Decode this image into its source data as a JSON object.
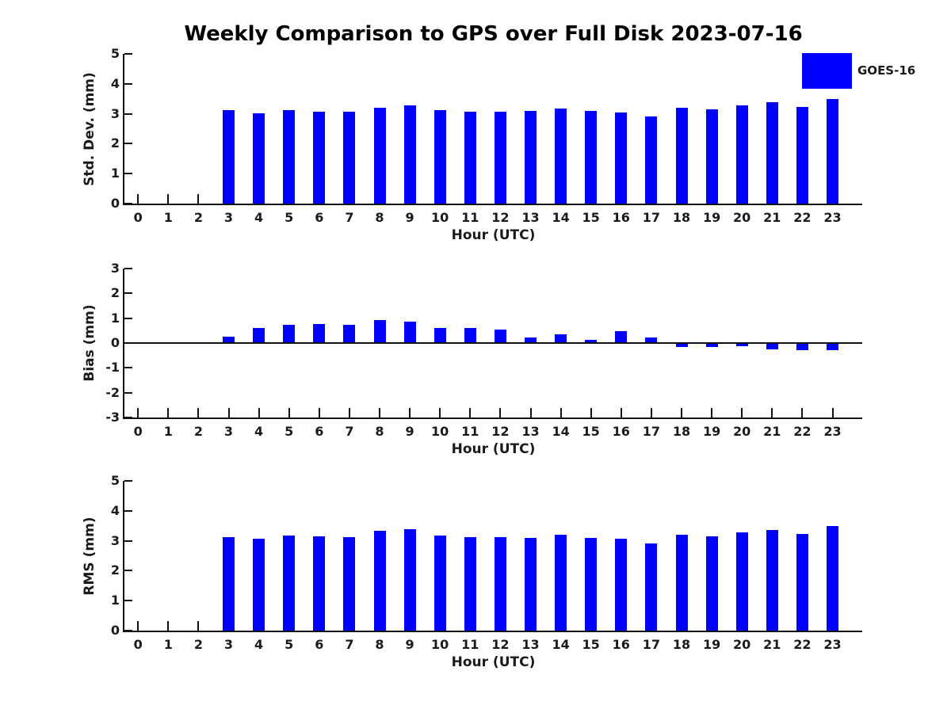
{
  "title": "Weekly Comparison to GPS over Full Disk 2023-07-16",
  "legend": {
    "label": "GOES-16",
    "color": "#0000ff",
    "position": "upper right"
  },
  "chart_data": [
    {
      "type": "bar",
      "panel": "std-dev",
      "ylabel": "Std. Dev. (mm)",
      "xlabel": "Hour (UTC)",
      "ylim": [
        0,
        5
      ],
      "yticks": [
        0,
        1,
        2,
        3,
        4,
        5
      ],
      "grid": false,
      "categories": [
        0,
        1,
        2,
        3,
        4,
        5,
        6,
        7,
        8,
        9,
        10,
        11,
        12,
        13,
        14,
        15,
        16,
        17,
        18,
        19,
        20,
        21,
        22,
        23
      ],
      "series": [
        {
          "name": "GOES-16",
          "color": "#0000ff",
          "values": [
            null,
            null,
            null,
            3.12,
            3.01,
            3.12,
            3.08,
            3.06,
            3.2,
            3.28,
            3.12,
            3.07,
            3.07,
            3.1,
            3.17,
            3.1,
            3.05,
            2.9,
            3.21,
            3.15,
            3.27,
            3.38,
            3.23,
            3.5
          ]
        }
      ]
    },
    {
      "type": "bar",
      "panel": "bias",
      "ylabel": "Bias (mm)",
      "xlabel": "Hour (UTC)",
      "ylim": [
        -3,
        3
      ],
      "yticks": [
        -3,
        -2,
        -1,
        0,
        1,
        2,
        3
      ],
      "zero_line": true,
      "grid": false,
      "categories": [
        0,
        1,
        2,
        3,
        4,
        5,
        6,
        7,
        8,
        9,
        10,
        11,
        12,
        13,
        14,
        15,
        16,
        17,
        18,
        19,
        20,
        21,
        22,
        23
      ],
      "series": [
        {
          "name": "GOES-16",
          "color": "#0000ff",
          "values": [
            null,
            null,
            null,
            0.25,
            0.62,
            0.72,
            0.78,
            0.75,
            0.93,
            0.85,
            0.62,
            0.62,
            0.53,
            0.22,
            0.34,
            0.13,
            0.47,
            0.21,
            -0.17,
            -0.17,
            -0.12,
            -0.25,
            -0.3,
            -0.28
          ]
        }
      ]
    },
    {
      "type": "bar",
      "panel": "rms",
      "ylabel": "RMS (mm)",
      "xlabel": "Hour (UTC)",
      "ylim": [
        0,
        5
      ],
      "yticks": [
        0,
        1,
        2,
        3,
        4,
        5
      ],
      "grid": false,
      "categories": [
        0,
        1,
        2,
        3,
        4,
        5,
        6,
        7,
        8,
        9,
        10,
        11,
        12,
        13,
        14,
        15,
        16,
        17,
        18,
        19,
        20,
        21,
        22,
        23
      ],
      "series": [
        {
          "name": "GOES-16",
          "color": "#0000ff",
          "values": [
            null,
            null,
            null,
            3.11,
            3.07,
            3.18,
            3.16,
            3.13,
            3.33,
            3.38,
            3.18,
            3.13,
            3.11,
            3.09,
            3.19,
            3.1,
            3.07,
            2.92,
            3.21,
            3.15,
            3.27,
            3.37,
            3.24,
            3.5
          ]
        }
      ]
    }
  ]
}
